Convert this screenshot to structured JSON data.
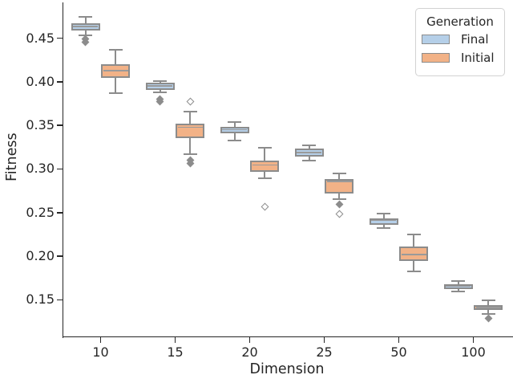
{
  "figure": {
    "xlabel": "Dimension",
    "ylabel": "Fitness"
  },
  "legend": {
    "title": "Generation",
    "entries": [
      {
        "label": "Final",
        "color": "#b5cfe8"
      },
      {
        "label": "Initial",
        "color": "#f2b287"
      }
    ]
  },
  "chart_data": {
    "type": "boxplot",
    "title": "",
    "xlabel": "Dimension",
    "ylabel": "Fitness",
    "categories": [
      "10",
      "15",
      "20",
      "25",
      "50",
      "100"
    ],
    "y_tick_values": [
      0.15,
      0.2,
      0.25,
      0.3,
      0.35,
      0.4,
      0.45
    ],
    "y_tick_labels": [
      "0.15",
      "0.20",
      "0.25",
      "0.30",
      "0.35",
      "0.40",
      "0.45"
    ],
    "ylim": [
      0.108,
      0.491
    ],
    "grid": false,
    "legend_position": "upper right",
    "colors": {
      "final_fill": "#b5cfe8",
      "initial_fill": "#f2b287",
      "box_line": "#8c8c8c",
      "median_line": "#9a9a9a",
      "spine": "#262626",
      "text": "#262626",
      "legend_border": "#d2d2d2"
    },
    "series": [
      {
        "name": "Final",
        "color": "#b5cfe8",
        "boxes": [
          {
            "category": "10",
            "whisker_low": 0.453,
            "q1": 0.459,
            "median": 0.4635,
            "q3": 0.467,
            "whisker_high": 0.474,
            "outliers": [
              {
                "value": 0.449,
                "hollow": false
              },
              {
                "value": 0.445,
                "hollow": false
              }
            ]
          },
          {
            "category": "15",
            "whisker_low": 0.388,
            "q1": 0.391,
            "median": 0.3955,
            "q3": 0.399,
            "whisker_high": 0.401,
            "outliers": [
              {
                "value": 0.38,
                "hollow": false
              },
              {
                "value": 0.377,
                "hollow": false
              }
            ]
          },
          {
            "category": "20",
            "whisker_low": 0.333,
            "q1": 0.341,
            "median": 0.345,
            "q3": 0.3485,
            "whisker_high": 0.354,
            "outliers": []
          },
          {
            "category": "25",
            "whisker_low": 0.31,
            "q1": 0.314,
            "median": 0.319,
            "q3": 0.323,
            "whisker_high": 0.327,
            "outliers": []
          },
          {
            "category": "50",
            "whisker_low": 0.2325,
            "q1": 0.236,
            "median": 0.241,
            "q3": 0.2435,
            "whisker_high": 0.249,
            "outliers": []
          },
          {
            "category": "100",
            "whisker_low": 0.16,
            "q1": 0.162,
            "median": 0.1655,
            "q3": 0.168,
            "whisker_high": 0.1715,
            "outliers": []
          }
        ]
      },
      {
        "name": "Initial",
        "color": "#f2b287",
        "boxes": [
          {
            "category": "10",
            "whisker_low": 0.387,
            "q1": 0.404,
            "median": 0.4125,
            "q3": 0.4205,
            "whisker_high": 0.4365,
            "outliers": []
          },
          {
            "category": "15",
            "whisker_low": 0.317,
            "q1": 0.335,
            "median": 0.348,
            "q3": 0.352,
            "whisker_high": 0.3655,
            "outliers": [
              {
                "value": 0.377,
                "hollow": true
              },
              {
                "value": 0.31,
                "hollow": false
              },
              {
                "value": 0.306,
                "hollow": false
              }
            ]
          },
          {
            "category": "20",
            "whisker_low": 0.289,
            "q1": 0.297,
            "median": 0.3045,
            "q3": 0.3095,
            "whisker_high": 0.324,
            "outliers": [
              {
                "value": 0.257,
                "hollow": true
              }
            ]
          },
          {
            "category": "25",
            "whisker_low": 0.265,
            "q1": 0.272,
            "median": 0.2855,
            "q3": 0.288,
            "whisker_high": 0.295,
            "outliers": [
              {
                "value": 0.259,
                "hollow": false
              },
              {
                "value": 0.248,
                "hollow": true
              }
            ]
          },
          {
            "category": "50",
            "whisker_low": 0.183,
            "q1": 0.195,
            "median": 0.202,
            "q3": 0.211,
            "whisker_high": 0.225,
            "outliers": []
          },
          {
            "category": "100",
            "whisker_low": 0.134,
            "q1": 0.138,
            "median": 0.141,
            "q3": 0.144,
            "whisker_high": 0.149,
            "outliers": [
              {
                "value": 0.129,
                "hollow": false
              }
            ]
          }
        ]
      }
    ]
  }
}
